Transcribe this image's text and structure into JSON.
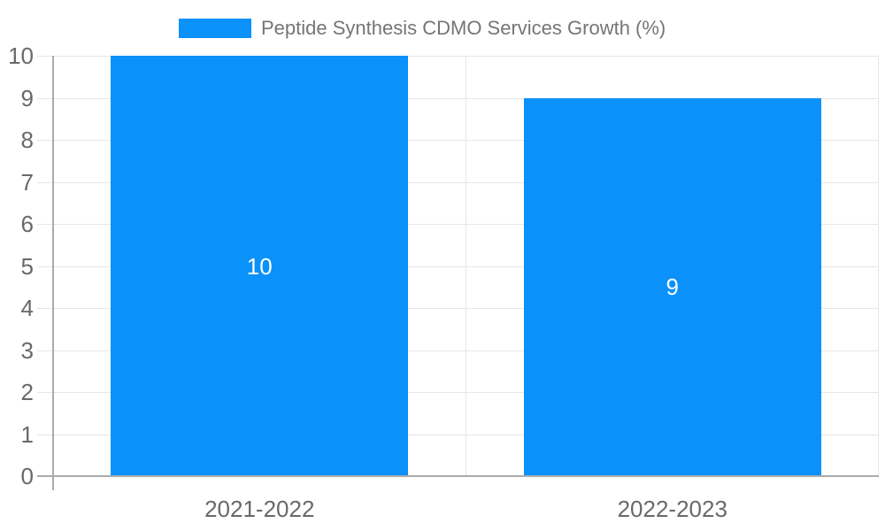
{
  "chart_data": {
    "type": "bar",
    "title": "",
    "legend_label": "Peptide Synthesis CDMO Services Growth (%)",
    "legend_position": "top",
    "categories": [
      "2021-2022",
      "2022-2023"
    ],
    "series": [
      {
        "name": "Peptide Synthesis CDMO Services Growth (%)",
        "values": [
          10,
          9
        ]
      }
    ],
    "data_labels": [
      "10",
      "9"
    ],
    "xlabel": "",
    "ylabel": "",
    "ylim": [
      0,
      10
    ],
    "yticks": [
      0,
      1,
      2,
      3,
      4,
      5,
      6,
      7,
      8,
      9,
      10
    ],
    "grid": true,
    "colors": {
      "bar": "#0a91fa",
      "grid": "#e6e6e6",
      "axis": "#ababab",
      "axis_text": "#696969",
      "legend_text": "#757575",
      "data_label": "#ffffff",
      "background": "#ffffff"
    }
  }
}
